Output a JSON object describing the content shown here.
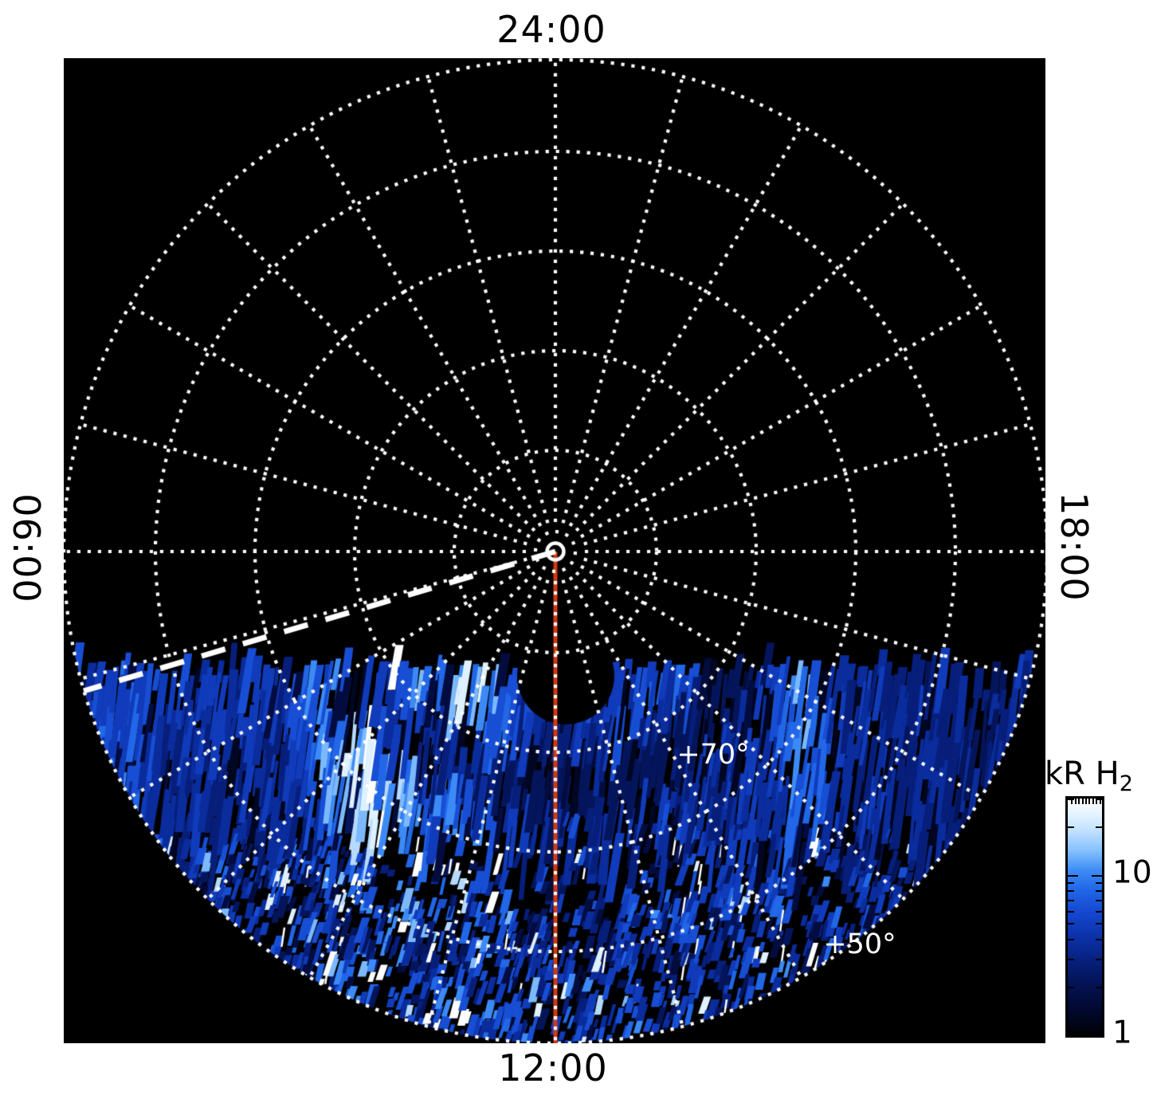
{
  "figure": {
    "background_color": "#ffffff",
    "plot_background_color": "#000000",
    "grid_color": "#ffffff",
    "meridian_line_color": "#d23b12",
    "dashed_line_color": "#ffffff"
  },
  "hour_labels": {
    "top": "24:00",
    "bottom": "12:00",
    "left": "06:00",
    "right": "18:00"
  },
  "latitude_labels": {
    "ring70": "+70°",
    "ring50": "+50°"
  },
  "colorbar": {
    "title_main": "kR H",
    "title_sub": "2",
    "scale": "log",
    "min": 1,
    "max": 30,
    "major_ticks": [
      {
        "value": 1,
        "label": "1"
      },
      {
        "value": 10,
        "label": "10"
      }
    ],
    "minor_ticks": [
      2,
      3,
      4,
      5,
      6,
      7,
      8,
      9,
      20,
      30
    ],
    "gradient": [
      {
        "p": 0,
        "c": "#ffffff"
      },
      {
        "p": 6,
        "c": "#e8f5ff"
      },
      {
        "p": 14,
        "c": "#bfe0ff"
      },
      {
        "p": 22,
        "c": "#85c0fd"
      },
      {
        "p": 30,
        "c": "#3f8ef7"
      },
      {
        "p": 38,
        "c": "#2268e8"
      },
      {
        "p": 48,
        "c": "#1548cf"
      },
      {
        "p": 58,
        "c": "#0c32ab"
      },
      {
        "p": 68,
        "c": "#072180"
      },
      {
        "p": 78,
        "c": "#041356"
      },
      {
        "p": 88,
        "c": "#020933"
      },
      {
        "p": 100,
        "c": "#000105"
      }
    ]
  },
  "chart_data": {
    "type": "heatmap",
    "projection": "polar, pole at center, planetary local time vs latitude",
    "angular_tick_labels": [
      "24:00",
      "06:00",
      "12:00",
      "18:00"
    ],
    "angular_gridlines": "24 dotted spokes, one per hour of local time (15 deg apart)",
    "latitude_gridlines_deg": [
      80,
      70,
      60,
      50,
      40
    ],
    "labeled_latitude_rings_deg": [
      70,
      50
    ],
    "quantity": "H2 auroral emission brightness",
    "value_units": "kR",
    "value_scale": "log",
    "value_range": [
      1,
      30
    ],
    "data_coverage": "emission only on dayside (lower) half, below a terminator chord; nightside upper half is black",
    "brightest_patch_local_time": "~10:00-10:30 near +70 deg latitude (white, >30 kR)",
    "dark_void": "small black circular notch just equatorward of pole on the 12:00 meridian",
    "dark_lane": "darker annular gap near +60 deg between main oval and lower-latitude speckle",
    "meridian_marker": "solid red-orange line from pole along 12:00 meridian to disk edge",
    "dashed_marker": "thick white dashed radial line from pole toward ~06:40 local time",
    "legend_position": "colorbar at right, labeled kR H2, ticks 1 and 10"
  }
}
